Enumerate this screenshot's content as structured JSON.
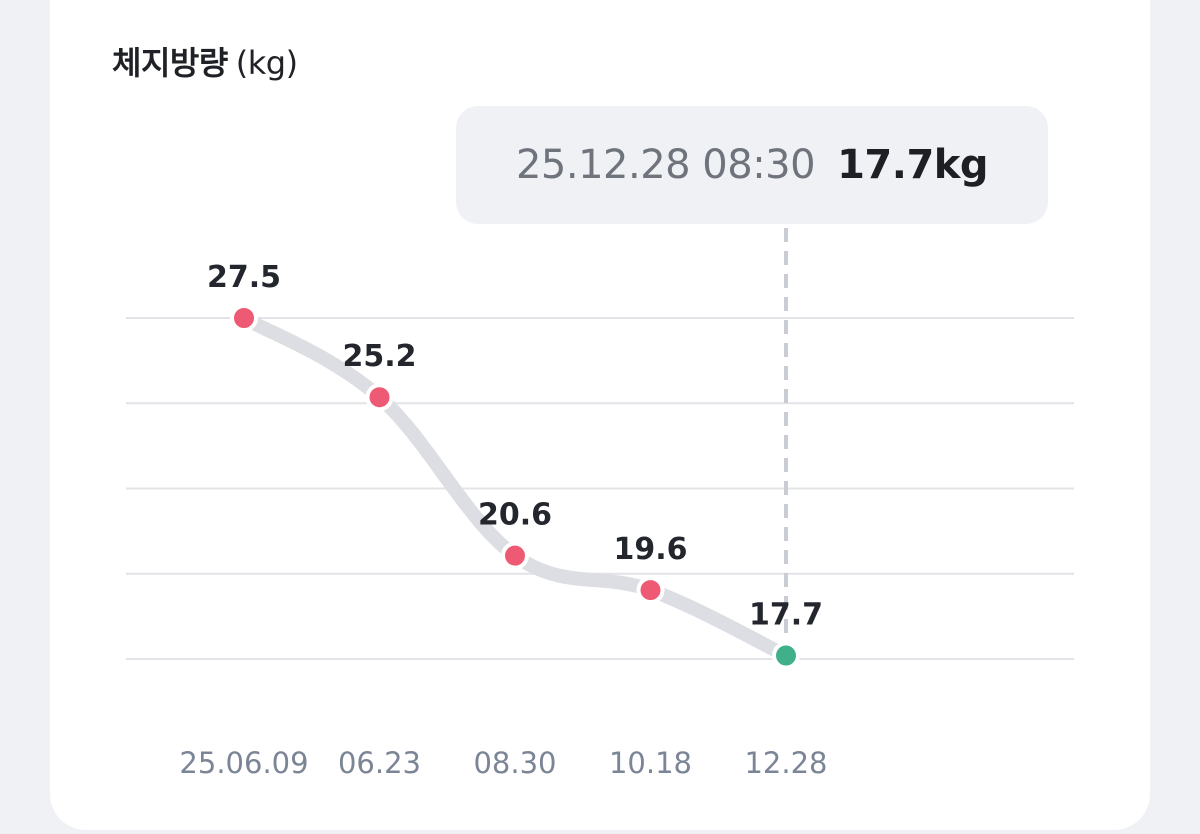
{
  "header": {
    "title": "체지방량",
    "unit": "(kg)"
  },
  "tooltip": {
    "datetime": "25.12.28 08:30",
    "value": "17.7kg"
  },
  "colors": {
    "point": "#ee5a73",
    "selected_point": "#3fb08a",
    "line": "#dcdee3",
    "grid": "#e2e4e8",
    "guide": "#c9ccd2"
  },
  "chart_data": {
    "type": "line",
    "x": [
      "25.06.09",
      "06.23",
      "08.30",
      "10.18",
      "12.28"
    ],
    "values": [
      27.5,
      25.2,
      20.6,
      19.6,
      17.7
    ],
    "labels": [
      "27.5",
      "25.2",
      "20.6",
      "19.6",
      "17.7"
    ],
    "selected_index": 4,
    "ylim": [
      17.6,
      27.5
    ],
    "grid": true,
    "gridlines": 5
  }
}
